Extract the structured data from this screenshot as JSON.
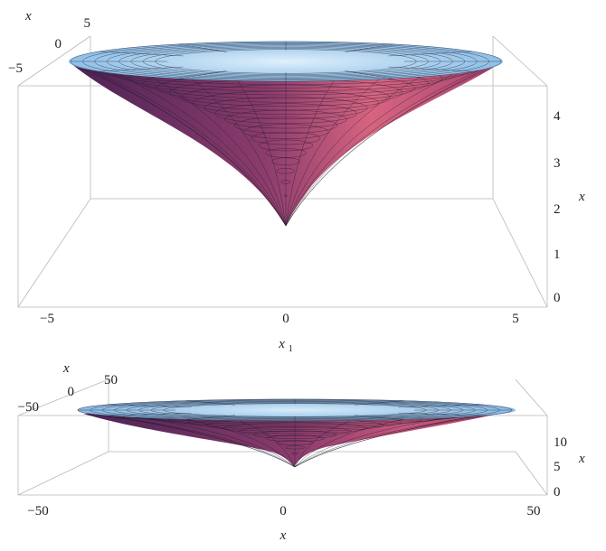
{
  "chart_data": [
    {
      "type": "surface3d",
      "title": "",
      "xlabel": "x1",
      "ylabel": "x2",
      "zlabel": "x3",
      "x_ticks": [
        "−5",
        "0",
        "5"
      ],
      "y_ticks": [
        "−5",
        "0",
        "5"
      ],
      "z_ticks": [
        "0",
        "1",
        "2",
        "3",
        "4"
      ],
      "xlim": [
        -5.7,
        5.7
      ],
      "ylim": [
        -5.7,
        5.7
      ],
      "zlim": [
        0,
        4.7
      ],
      "surface": {
        "shape": "funnel",
        "r_max": 5.3,
        "z_apex": 1.75,
        "z_rim": 4.6
      },
      "colors": {
        "top": "#a8d4f0",
        "side_dark": "#5a2a5e",
        "side_light": "#d3607e",
        "apex": "#f0c46a"
      }
    },
    {
      "type": "surface3d",
      "title": "",
      "xlabel": "x1",
      "ylabel": "x2",
      "zlabel": "x3",
      "x_ticks": [
        "−50",
        "0",
        "50"
      ],
      "y_ticks": [
        "−50",
        "0",
        "50"
      ],
      "z_ticks": [
        "0",
        "5",
        "10"
      ],
      "xlim": [
        -55,
        55
      ],
      "ylim": [
        -55,
        55
      ],
      "zlim": [
        0,
        14
      ],
      "surface": {
        "shape": "funnel",
        "r_max": 50,
        "z_apex": 5.3,
        "z_rim": 13.5
      },
      "colors": {
        "top": "#8fc2e8",
        "side_dark": "#5a2a5e",
        "side_light": "#c65a7c",
        "apex": "#e9b96b"
      }
    }
  ]
}
